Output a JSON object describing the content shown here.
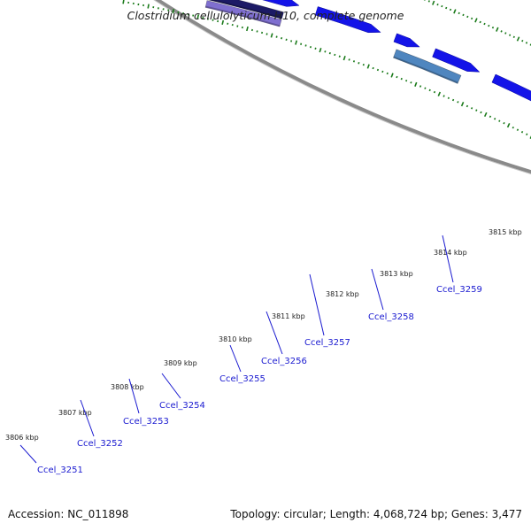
{
  "title": "Clostridium cellulolyticum H10, complete genome",
  "footer": {
    "accession": "Accession: NC_011898",
    "summary": "Topology: circular; Length: 4,068,724 bp; Genes: 3,477"
  },
  "colors": {
    "backbone": "#8a8a8a",
    "forward_gene": "#1414e8",
    "tick": "#1a7a1a",
    "label": "#1a1ad0",
    "highlight_yellow": "#f2e49a",
    "highlight_steelblue": "#4f86bf",
    "highlight_navy": "#1c1a66",
    "highlight_purple": "#7f6fd0",
    "highlight_teal": "#2fe0b0"
  },
  "ticks": [
    {
      "label": "3806 kbp"
    },
    {
      "label": "3807 kbp"
    },
    {
      "label": "3808 kbp"
    },
    {
      "label": "3809 kbp"
    },
    {
      "label": "3810 kbp"
    },
    {
      "label": "3811 kbp"
    },
    {
      "label": "3812 kbp"
    },
    {
      "label": "3813 kbp"
    },
    {
      "label": "3814 kbp"
    },
    {
      "label": "3815 kbp"
    }
  ],
  "genes": [
    {
      "label": "Ccel_3251"
    },
    {
      "label": "Ccel_3252"
    },
    {
      "label": "Ccel_3253"
    },
    {
      "label": "Ccel_3254"
    },
    {
      "label": "Ccel_3255"
    },
    {
      "label": "Ccel_3256"
    },
    {
      "label": "Ccel_3257"
    },
    {
      "label": "Ccel_3258"
    },
    {
      "label": "Ccel_3259"
    }
  ]
}
